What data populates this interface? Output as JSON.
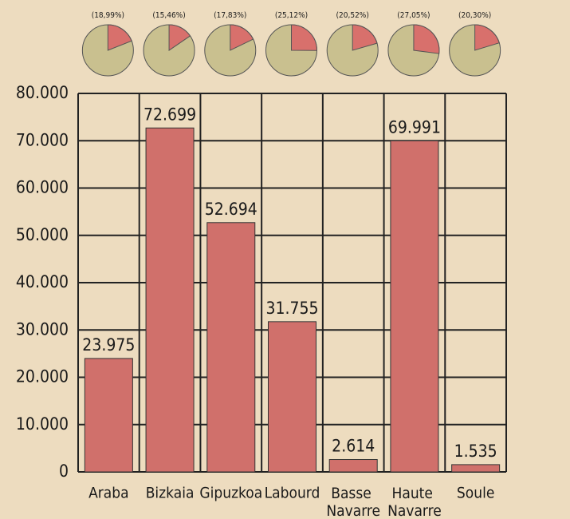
{
  "chart_data": {
    "type": "bar",
    "categories": [
      "Araba",
      "Bizkaia",
      "Gipuzkoa",
      "Labourd",
      "Basse Navarre",
      "Haute Navarre",
      "Soule"
    ],
    "values": [
      23975,
      72699,
      52694,
      31755,
      2614,
      69991,
      1535
    ],
    "value_labels": [
      "23.975",
      "72.699",
      "52.694",
      "31.755",
      "2.614",
      "69.991",
      "1.535"
    ],
    "color": "#d0706b",
    "ylim": [
      0,
      80000
    ],
    "yticks": [
      0,
      {
        "value": 10000,
        "label": "10.000"
      },
      {
        "value": 20000,
        "label": "20.000"
      },
      {
        "value": 30000,
        "label": "30.000"
      },
      {
        "value": 40000,
        "label": "40.000"
      },
      {
        "value": 50000,
        "label": "50.000"
      },
      {
        "value": 60000,
        "label": "60.000"
      },
      {
        "value": 70000,
        "label": "70.000"
      },
      {
        "value": 80000,
        "label": "80.000"
      }
    ],
    "grid": true,
    "shares": [
      18.99,
      15.46,
      17.83,
      25.12,
      20.52,
      27.05,
      20.3
    ],
    "share_labels": [
      "(18,99%)",
      "(15,46%)",
      "(17,83%)",
      "(25,12%)",
      "(20,52%)",
      "(27,05%)",
      "(20,30%)"
    ],
    "share_color": "#d8706c",
    "share_base_color": "#c9c08f"
  }
}
